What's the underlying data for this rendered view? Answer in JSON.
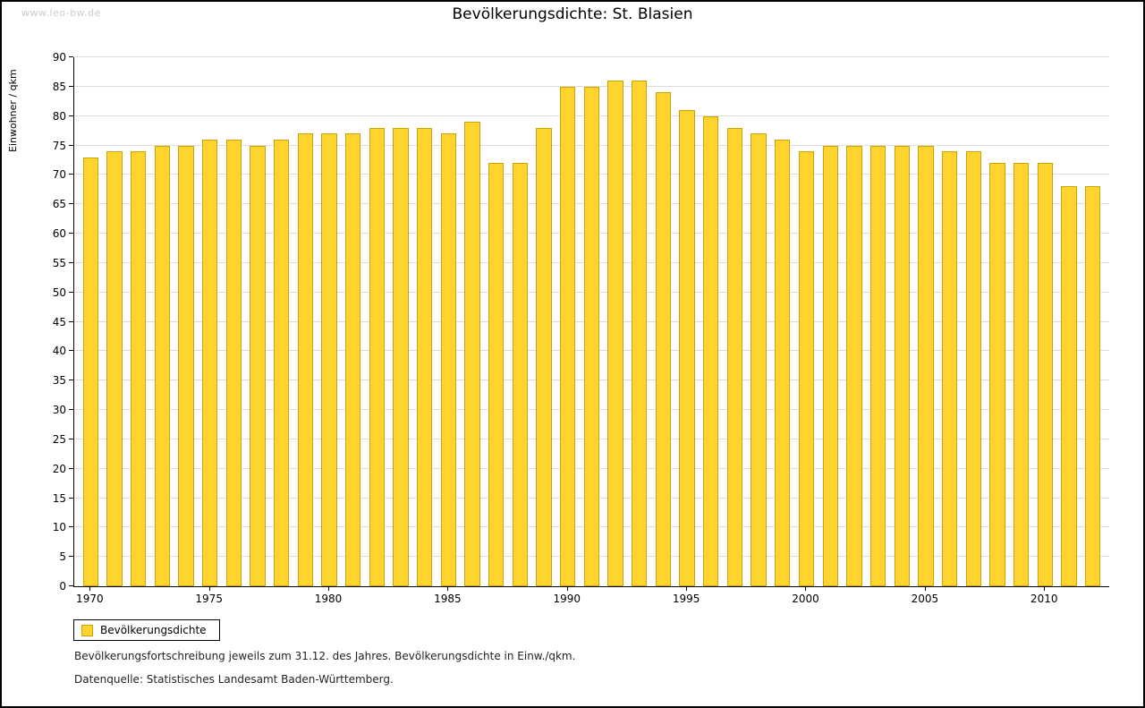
{
  "watermark": "www.leo-bw.de",
  "title": "Bevölkerungsdichte: St. Blasien",
  "legend": {
    "label": "Bevölkerungsdichte"
  },
  "footnotes": {
    "line1": "Bevölkerungsfortschreibung jeweils zum 31.12. des Jahres. Bevölkerungsdichte in Einw./qkm.",
    "line2": "Datenquelle: Statistisches Landesamt Baden-Württemberg."
  },
  "colors": {
    "bar_fill": "#FFD42E",
    "bar_border": "#C7A400",
    "grid": "#DCDCDC",
    "axis": "#000000",
    "watermark": "#CCCCCC"
  },
  "chart_data": {
    "type": "bar",
    "title": "Bevölkerungsdichte: St. Blasien",
    "xlabel": "",
    "ylabel": "Einwohner / qkm",
    "ylim": [
      0,
      90
    ],
    "ytick_step": 5,
    "grid": true,
    "legend_entries": [
      "Bevölkerungsdichte"
    ],
    "legend_position": "bottom-left",
    "x_label_every": 5,
    "categories": [
      1970,
      1971,
      1972,
      1973,
      1974,
      1975,
      1976,
      1977,
      1978,
      1979,
      1980,
      1981,
      1982,
      1983,
      1984,
      1985,
      1986,
      1987,
      1988,
      1989,
      1990,
      1991,
      1992,
      1993,
      1994,
      1995,
      1996,
      1997,
      1998,
      1999,
      2000,
      2001,
      2002,
      2003,
      2004,
      2005,
      2006,
      2007,
      2008,
      2009,
      2010,
      2011,
      2012
    ],
    "values": [
      73,
      74,
      74,
      75,
      75,
      76,
      76,
      75,
      76,
      77,
      77,
      77,
      78,
      78,
      78,
      77,
      79,
      72,
      72,
      78,
      85,
      85,
      86,
      86,
      84,
      81,
      80,
      78,
      77,
      76,
      74,
      75,
      75,
      75,
      75,
      75,
      74,
      74,
      72,
      72,
      72,
      68,
      68
    ]
  }
}
